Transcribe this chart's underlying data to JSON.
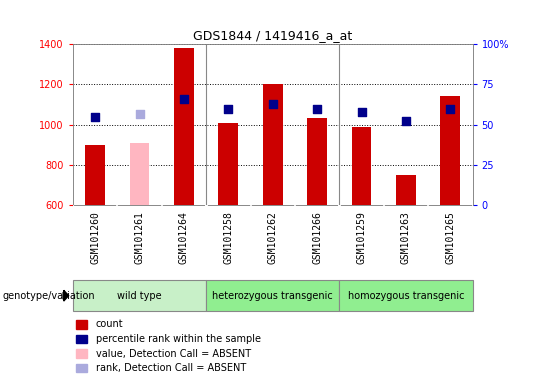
{
  "title": "GDS1844 / 1419416_a_at",
  "samples": [
    "GSM101260",
    "GSM101261",
    "GSM101264",
    "GSM101258",
    "GSM101262",
    "GSM101266",
    "GSM101259",
    "GSM101263",
    "GSM101265"
  ],
  "count_values": [
    900,
    null,
    1380,
    1010,
    1200,
    1035,
    990,
    750,
    1145
  ],
  "absent_count_values": [
    null,
    910,
    null,
    null,
    null,
    null,
    null,
    null,
    null
  ],
  "percentile_values": [
    1040,
    null,
    1130,
    1080,
    1105,
    1080,
    1065,
    1020,
    1080
  ],
  "absent_percentile_values": [
    null,
    1055,
    null,
    null,
    null,
    null,
    null,
    null,
    null
  ],
  "ylim": [
    600,
    1400
  ],
  "y2lim": [
    0,
    100
  ],
  "yticks": [
    600,
    800,
    1000,
    1200,
    1400
  ],
  "y2ticks": [
    0,
    25,
    50,
    75,
    100
  ],
  "y2ticklabels": [
    "0",
    "25",
    "50",
    "75",
    "100%"
  ],
  "group_boundaries": [
    2.5,
    5.5
  ],
  "groups": [
    {
      "label": "wild type",
      "start": 0,
      "end": 3,
      "color": "#c8f0c8"
    },
    {
      "label": "heterozygous transgenic",
      "start": 3,
      "end": 6,
      "color": "#90ee90"
    },
    {
      "label": "homozygous transgenic",
      "start": 6,
      "end": 9,
      "color": "#90ee90"
    }
  ],
  "bar_color_red": "#cc0000",
  "bar_color_pink": "#ffb6c1",
  "marker_color_blue": "#00008b",
  "marker_color_lightblue": "#aaaadd",
  "bar_width": 0.45,
  "marker_size": 40,
  "legend_labels": [
    "count",
    "percentile rank within the sample",
    "value, Detection Call = ABSENT",
    "rank, Detection Call = ABSENT"
  ],
  "legend_colors": [
    "#cc0000",
    "#00008b",
    "#ffb6c1",
    "#aaaadd"
  ],
  "plot_bg_color": "#ffffff",
  "label_bg_color": "#d3d3d3",
  "title_fontsize": 9,
  "tick_fontsize": 7,
  "label_fontsize": 7,
  "group_fontsize": 7,
  "legend_fontsize": 7
}
